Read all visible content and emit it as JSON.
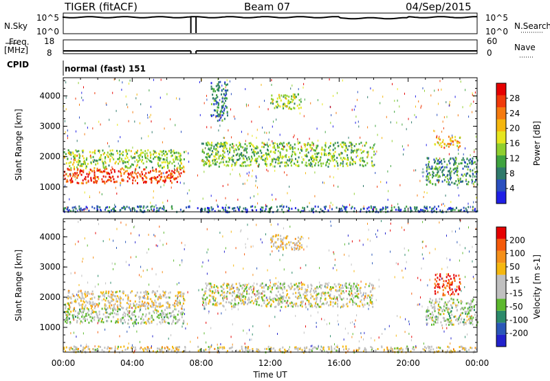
{
  "header": {
    "radar": "TIGER (fitACF)",
    "beam": "Beam 07",
    "date": "04/Sep/2015"
  },
  "strip_nsky": {
    "left_label": "N.Sky",
    "right_label": "N.Search",
    "left_ticks": [
      "10^5",
      "10^0"
    ],
    "right_ticks": [
      "10^5",
      "10^0"
    ],
    "colors": {
      "sky": "#000000",
      "search": "#000000"
    }
  },
  "strip_freq": {
    "left_label_top": "Freq.",
    "left_label_unit": "[MHz]",
    "right_label": "Nave",
    "left_ticks": [
      "18",
      "8"
    ],
    "right_ticks": [
      "60",
      "0"
    ]
  },
  "strip_cpid": {
    "label": "CPID",
    "text": "normal (fast) 151"
  },
  "x_axis": {
    "label": "Time UT",
    "ticks": [
      "00:00",
      "04:00",
      "08:00",
      "12:00",
      "16:00",
      "20:00",
      "00:00"
    ]
  },
  "chart_data": [
    {
      "type": "heatmap",
      "name": "power",
      "ylabel": "Slant Range [km]",
      "yticks": [
        1000,
        2000,
        3000,
        4000
      ],
      "ylim": [
        180,
        4600
      ],
      "xlim_hours": [
        0,
        24
      ],
      "colorbar": {
        "label": "Power [dB]",
        "ticks": [
          "4",
          "8",
          "12",
          "16",
          "20",
          "24",
          "28"
        ],
        "range": [
          0,
          32
        ],
        "colors": [
          "#1f1fe6",
          "#2a4fbf",
          "#2f7a6b",
          "#3fa33f",
          "#8fcf2f",
          "#e6e61f",
          "#f5b70f",
          "#f57a0f",
          "#f03a0a",
          "#e60000"
        ]
      },
      "bands": [
        {
          "t0": 0.0,
          "t1": 7.0,
          "r0": 1150,
          "r1": 1650,
          "level": 0.85
        },
        {
          "t0": 0.0,
          "t1": 7.0,
          "r0": 1650,
          "r1": 2250,
          "level": 0.45
        },
        {
          "t0": 8.0,
          "t1": 18.0,
          "r0": 1700,
          "r1": 2500,
          "level": 0.42
        },
        {
          "t0": 8.5,
          "t1": 9.5,
          "r0": 3200,
          "r1": 4500,
          "level": 0.25
        },
        {
          "t0": 12.0,
          "t1": 13.8,
          "r0": 3600,
          "r1": 4100,
          "level": 0.45
        },
        {
          "t0": 21.0,
          "t1": 24.0,
          "r0": 1100,
          "r1": 2000,
          "level": 0.3
        },
        {
          "t0": 21.5,
          "t1": 23.0,
          "r0": 2300,
          "r1": 2700,
          "level": 0.65
        },
        {
          "t0": 0.0,
          "t1": 24.0,
          "r0": 200,
          "r1": 400,
          "level": 0.2
        }
      ]
    },
    {
      "type": "heatmap",
      "name": "velocity",
      "ylabel": "Slant Range [km]",
      "yticks": [
        1000,
        2000,
        3000,
        4000
      ],
      "ylim": [
        180,
        4600
      ],
      "xlim_hours": [
        0,
        24
      ],
      "colorbar": {
        "label": "Velocity [m s-1]",
        "ticks": [
          "200",
          "100",
          "50",
          "15",
          "-15",
          "-50",
          "-100",
          "-200"
        ],
        "colors": [
          "#2222cc",
          "#2a57b8",
          "#2c8a6a",
          "#5cb82e",
          "#c0c0c0",
          "#c0c0c0",
          "#f5b70f",
          "#f5901a",
          "#f55a0a",
          "#e60000"
        ]
      },
      "bands": [
        {
          "t0": 0.0,
          "t1": 7.0,
          "r0": 1150,
          "r1": 1650,
          "level": 0.45
        },
        {
          "t0": 0.0,
          "t1": 7.0,
          "r0": 1650,
          "r1": 2250,
          "level": 0.55
        },
        {
          "t0": 8.0,
          "t1": 18.0,
          "r0": 1700,
          "r1": 2500,
          "level": 0.5
        },
        {
          "t0": 12.0,
          "t1": 13.8,
          "r0": 3600,
          "r1": 4100,
          "level": 0.6
        },
        {
          "t0": 21.5,
          "t1": 23.0,
          "r0": 2100,
          "r1": 2800,
          "level": 0.92
        },
        {
          "t0": 21.0,
          "t1": 24.0,
          "r0": 1100,
          "r1": 2000,
          "level": 0.45
        },
        {
          "t0": 0.0,
          "t1": 24.0,
          "r0": 200,
          "r1": 400,
          "level": 0.55
        }
      ]
    }
  ]
}
